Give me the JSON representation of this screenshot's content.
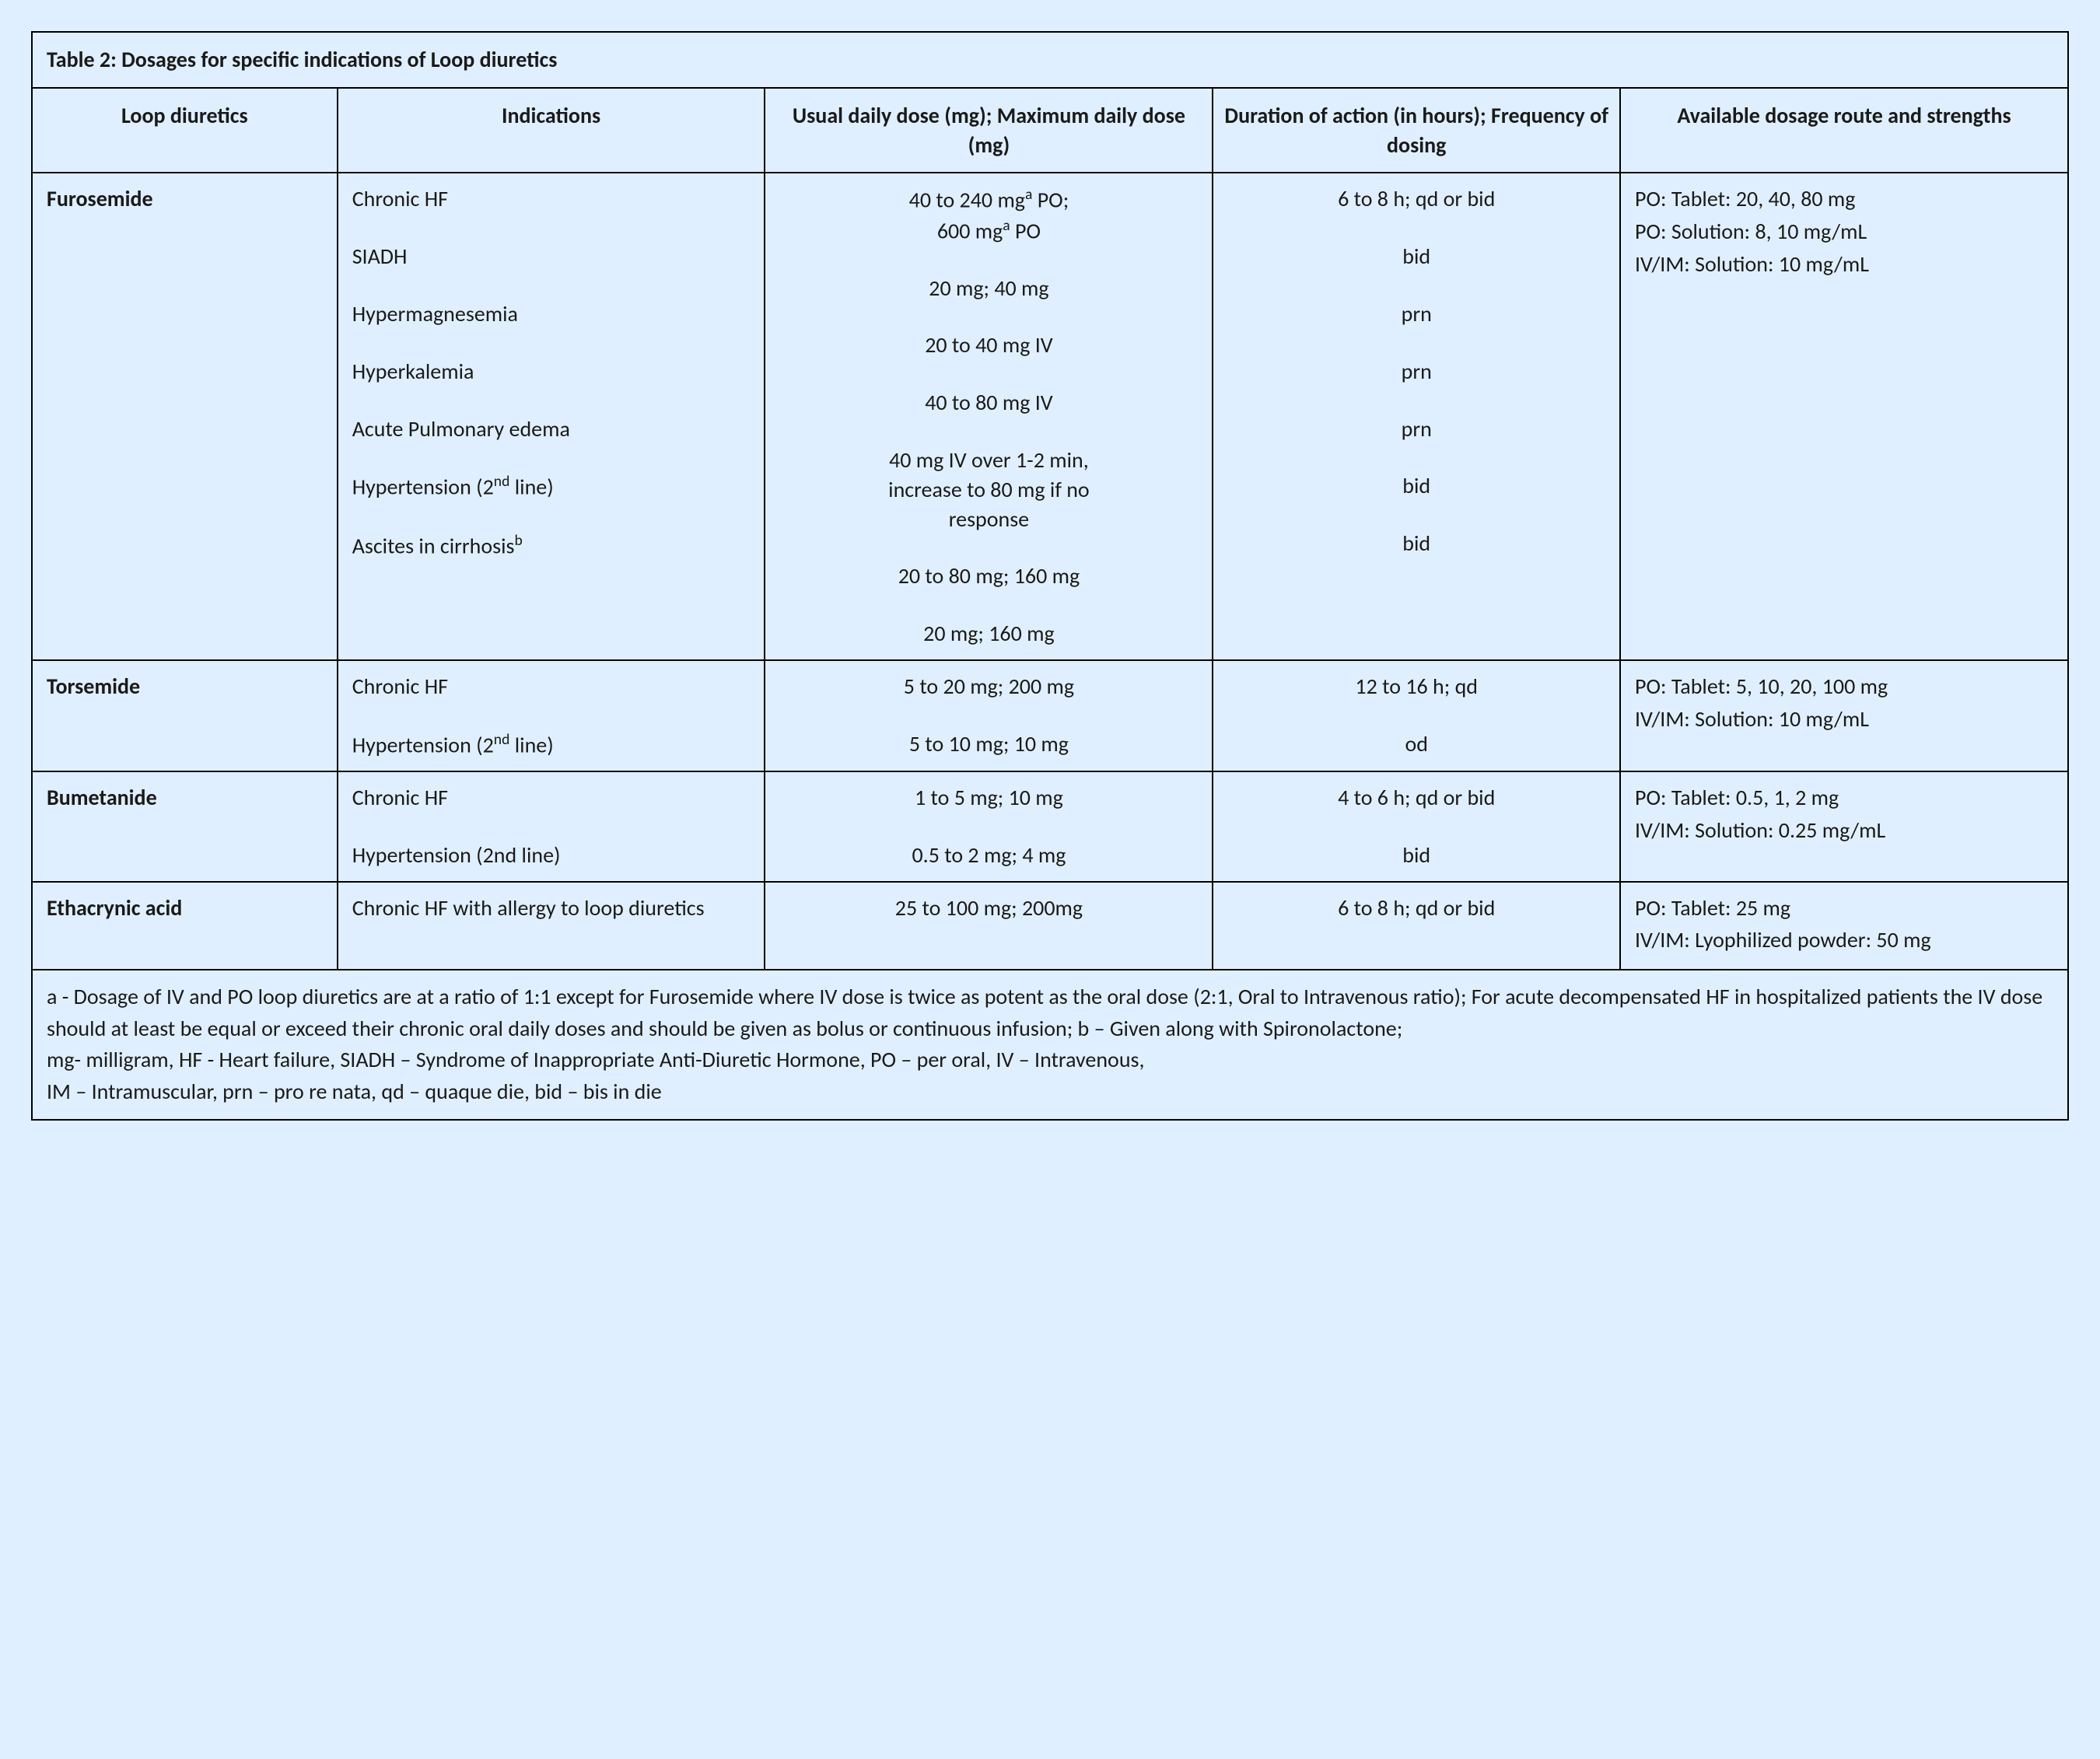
{
  "title": "Table 2: Dosages for specific indications of Loop diuretics",
  "headers": {
    "c1": "Loop diuretics",
    "c2": "Indications",
    "c3": "Usual daily dose (mg); Maximum daily dose (mg)",
    "c4": "Duration of action (in hours); Frequency of dosing",
    "c5": "Available dosage route and strengths"
  },
  "drugs": [
    {
      "name": "Furosemide",
      "routes": [
        "PO: Tablet:  20, 40, 80 mg",
        "PO: Solution:  8, 10 mg/mL",
        "IV/IM: Solution:  10 mg/mL"
      ],
      "rows": [
        {
          "ind": "Chronic HF",
          "dose_html": "40 to 240 mg<sup>a</sup> PO;<br>600 mg<sup>a</sup> PO",
          "dur": "6 to 8 h; qd or bid"
        },
        {
          "ind": "SIADH",
          "dose": "20 mg; 40 mg",
          "dur": "bid"
        },
        {
          "ind": "Hypermagnesemia",
          "dose": "20 to 40 mg IV",
          "dur": "prn"
        },
        {
          "ind": "Hyperkalemia",
          "dose": "40 to 80 mg IV",
          "dur": "prn"
        },
        {
          "ind": "Acute Pulmonary edema",
          "dose_html": "40 mg IV over 1-2 min,<br>increase to 80 mg if no<br>response",
          "dur": "prn"
        },
        {
          "ind_html": "Hypertension (2<sup>nd</sup> line)",
          "dose": "20 to 80 mg; 160 mg",
          "dur": "bid"
        },
        {
          "ind_html": "Ascites in cirrhosis<sup>b</sup>",
          "dose": "20 mg; 160 mg",
          "dur": "bid"
        }
      ]
    },
    {
      "name": "Torsemide",
      "routes": [
        "PO: Tablet: 5, 10, 20, 100 mg",
        "IV/IM: Solution:  10 mg/mL"
      ],
      "rows": [
        {
          "ind": "Chronic HF",
          "dose": "5 to 20 mg; 200 mg",
          "dur": "12 to 16 h; qd"
        },
        {
          "ind_html": "Hypertension (2<sup>nd</sup> line)",
          "dose": "5 to 10 mg; 10 mg",
          "dur": "od"
        }
      ]
    },
    {
      "name": "Bumetanide",
      "routes": [
        "PO: Tablet:  0.5, 1, 2 mg",
        "IV/IM: Solution:  0.25 mg/mL"
      ],
      "rows": [
        {
          "ind": "Chronic HF",
          "dose": "1 to 5 mg; 10 mg",
          "dur": "4 to 6 h; qd or bid"
        },
        {
          "ind": "Hypertension (2nd line)",
          "dose": "0.5 to 2 mg; 4 mg",
          "dur": "bid"
        }
      ]
    },
    {
      "name": "Ethacrynic acid",
      "routes": [
        "PO: Tablet: 25 mg",
        "IV/IM: Lyophilized powder: 50 mg"
      ],
      "rows": [
        {
          "ind": "Chronic HF with allergy to loop diuretics",
          "dose": "25 to 100 mg; 200mg",
          "dur": "6 to 8 h; qd or bid"
        }
      ]
    }
  ],
  "footnote_html": "a - Dosage of IV and PO loop diuretics are at a ratio of 1:1 except for Furosemide where IV dose is twice as potent as the oral dose (2:1, Oral to Intravenous ratio); For acute decompensated HF in hospitalized patients the IV dose should at least be equal or exceed their chronic oral daily doses and should be given as bolus or continuous infusion; b – Given along with Spironolactone;<br>mg- milligram, HF - Heart failure, SIADH – Syndrome of Inappropriate Anti-Diuretic Hormone, PO – per oral, IV – Intravenous,<br>IM – Intramuscular, prn – pro re nata, qd – quaque die, bid – bis in die",
  "style": {
    "background": "#e0efff",
    "border_color": "#000000",
    "text_color": "#1a1a1a",
    "font_family": "Calibri"
  }
}
